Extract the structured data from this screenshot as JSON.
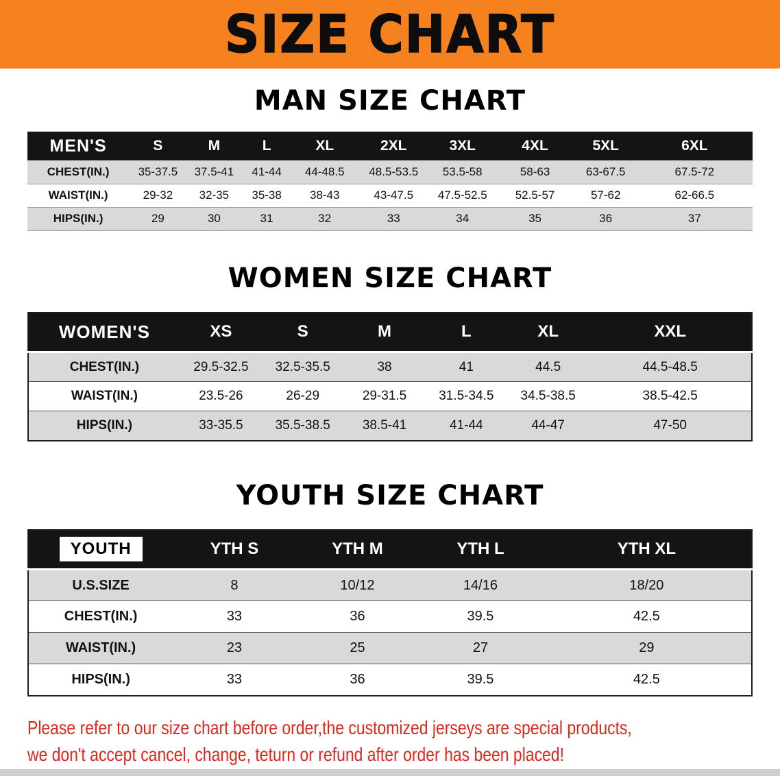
{
  "banner": {
    "title": "SIZE CHART"
  },
  "colors": {
    "banner_bg": "#F5821F",
    "header_bar": "#141414",
    "row_stripe": "#D9D9D9",
    "table_border": "#1C1C1C",
    "disclaimer_red": "#E0261C"
  },
  "sections": [
    {
      "id": "men",
      "heading": "MAN SIZE CHART",
      "label_header": "MEN'S",
      "size_headers": [
        "S",
        "M",
        "L",
        "XL",
        "2XL",
        "3XL",
        "4XL",
        "5XL",
        "6XL"
      ],
      "rows": [
        {
          "label": "CHEST(IN.)",
          "values": [
            "35-37.5",
            "37.5-41",
            "41-44",
            "44-48.5",
            "48.5-53.5",
            "53.5-58",
            "58-63",
            "63-67.5",
            "67.5-72"
          ]
        },
        {
          "label": "WAIST(IN.)",
          "values": [
            "29-32",
            "32-35",
            "35-38",
            "38-43",
            "43-47.5",
            "47.5-52.5",
            "52.5-57",
            "57-62",
            "62-66.5"
          ]
        },
        {
          "label": "HIPS(IN.)",
          "values": [
            "29",
            "30",
            "31",
            "32",
            "33",
            "34",
            "35",
            "36",
            "37"
          ]
        }
      ]
    },
    {
      "id": "women",
      "heading": "WOMEN SIZE CHART",
      "label_header": "WOMEN'S",
      "size_headers": [
        "XS",
        "S",
        "M",
        "L",
        "XL",
        "XXL"
      ],
      "rows": [
        {
          "label": "CHEST(IN.)",
          "values": [
            "29.5-32.5",
            "32.5-35.5",
            "38",
            "41",
            "44.5",
            "44.5-48.5"
          ]
        },
        {
          "label": "WAIST(IN.)",
          "values": [
            "23.5-26",
            "26-29",
            "29-31.5",
            "31.5-34.5",
            "34.5-38.5",
            "38.5-42.5"
          ]
        },
        {
          "label": "HIPS(IN.)",
          "values": [
            "33-35.5",
            "35.5-38.5",
            "38.5-41",
            "41-44",
            "44-47",
            "47-50"
          ]
        }
      ]
    },
    {
      "id": "youth",
      "heading": "YOUTH SIZE CHART",
      "label_header": "YOUTH",
      "size_headers": [
        "YTH S",
        "YTH M",
        "YTH L",
        "YTH XL"
      ],
      "rows": [
        {
          "label": "U.S.SIZE",
          "values": [
            "8",
            "10/12",
            "14/16",
            "18/20"
          ]
        },
        {
          "label": "CHEST(IN.)",
          "values": [
            "33",
            "36",
            "39.5",
            "42.5"
          ]
        },
        {
          "label": "WAIST(IN.)",
          "values": [
            "23",
            "25",
            "27",
            "29"
          ]
        },
        {
          "label": "HIPS(IN.)",
          "values": [
            "33",
            "36",
            "39.5",
            "42.5"
          ]
        }
      ]
    }
  ],
  "disclaimer": {
    "line1": "Please refer to our size chart before order,the customized jerseys are special products,",
    "line2": "we don't accept cancel, change, teturn or refund after order has been placed!"
  }
}
